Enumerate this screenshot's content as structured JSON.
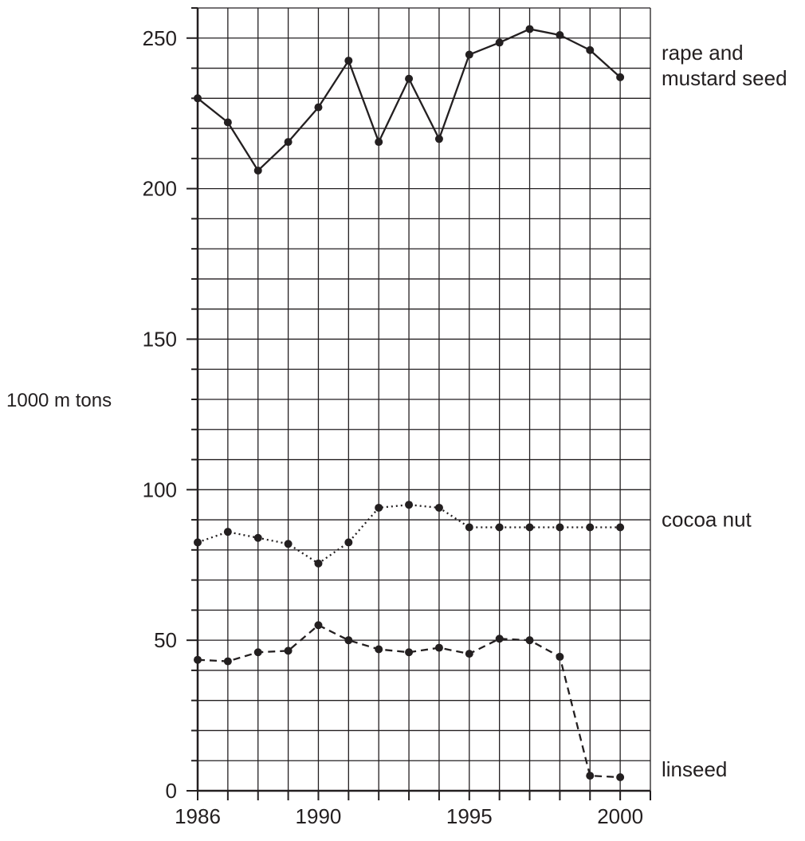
{
  "chart_data": {
    "type": "line",
    "title": "",
    "xlabel": "",
    "ylabel": "1000 m tons",
    "x": [
      1986,
      1987,
      1988,
      1989,
      1990,
      1991,
      1992,
      1993,
      1994,
      1995,
      1996,
      1997,
      1998,
      1999,
      2000
    ],
    "xlim": [
      1986,
      2001
    ],
    "ylim": [
      0,
      260
    ],
    "x_ticks": [
      1986,
      1990,
      1995,
      2000
    ],
    "y_ticks": [
      0,
      50,
      100,
      150,
      200,
      250
    ],
    "grid": true,
    "legend": "labels at right end of each series",
    "series": [
      {
        "name": "rape and mustard seed",
        "label_lines": [
          "rape and",
          "mustard seed"
        ],
        "style": "solid",
        "values": [
          230,
          222,
          206,
          215.5,
          227,
          242.5,
          215.5,
          236.5,
          216.5,
          244.5,
          248.5,
          253,
          251,
          246,
          237
        ]
      },
      {
        "name": "cocoa nut",
        "label_lines": [
          "cocoa nut"
        ],
        "style": "dotted",
        "values": [
          82.5,
          86,
          84,
          82,
          75.5,
          82.5,
          94,
          95,
          94,
          87.5,
          87.5,
          87.5,
          87.5,
          87.5,
          87.5
        ]
      },
      {
        "name": "linseed",
        "label_lines": [
          "linseed"
        ],
        "style": "dashed",
        "values": [
          43.5,
          43,
          46,
          46.5,
          55,
          50,
          47,
          46,
          47.5,
          45.5,
          50.5,
          50,
          44.5,
          5,
          4.5
        ]
      }
    ],
    "colors": {
      "line": "#231f20",
      "grid": "#231f20"
    }
  }
}
